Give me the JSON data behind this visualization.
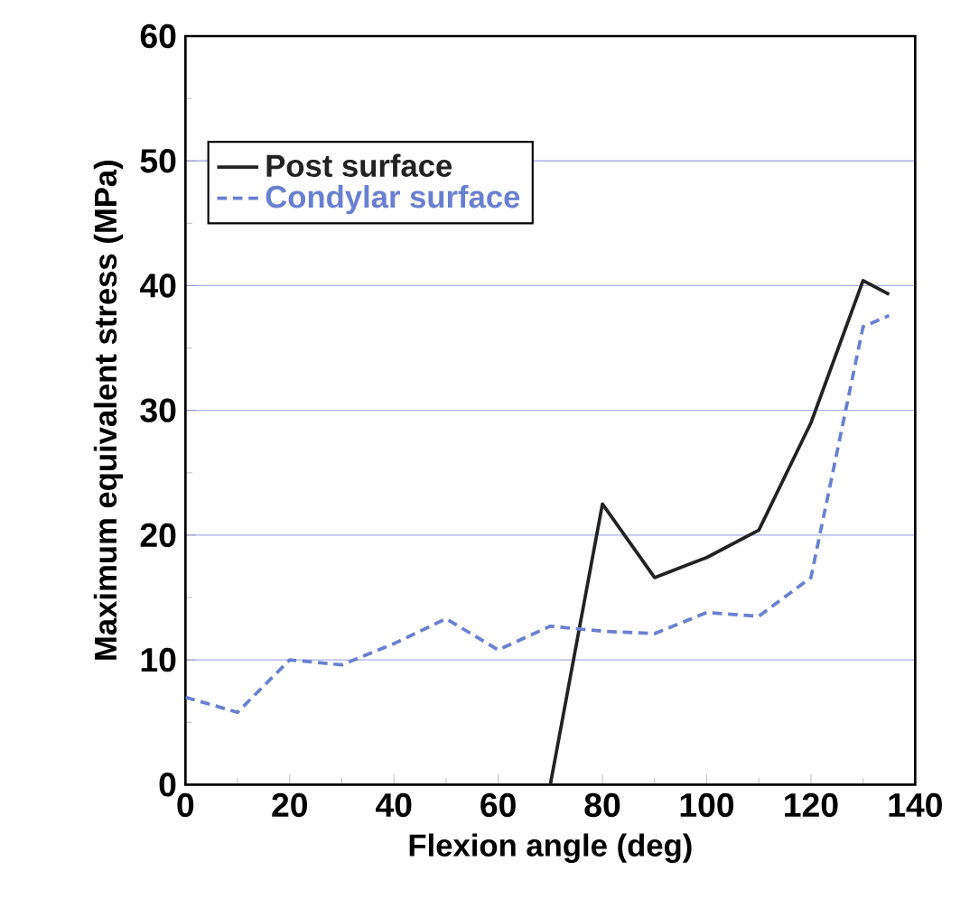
{
  "chart_data": {
    "type": "line",
    "xlabel": "Flexion angle (deg)",
    "ylabel": "Maximum equivalent stress (MPa)",
    "xlim": [
      0,
      140
    ],
    "xticks": [
      0,
      20,
      40,
      60,
      80,
      100,
      120,
      140
    ],
    "ylim": [
      0,
      60
    ],
    "yticks": [
      0,
      10,
      20,
      30,
      40,
      50,
      60
    ],
    "grid": "y",
    "legend": "top left",
    "series": [
      {
        "name": "Post surface",
        "color": "#222222",
        "line_style": "solid",
        "x": [
          70,
          80,
          90,
          100,
          110,
          120,
          130,
          135
        ],
        "values": [
          0,
          22.5,
          16.6,
          18.2,
          20.4,
          29.0,
          40.4,
          39.3
        ]
      },
      {
        "name": "Condylar surface",
        "color": "#6a7fcf",
        "line_style": "dashed",
        "x": [
          0,
          10,
          20,
          30,
          40,
          50,
          60,
          70,
          80,
          90,
          100,
          110,
          120,
          130,
          135
        ],
        "values": [
          7.0,
          5.8,
          10.0,
          9.6,
          11.3,
          13.3,
          10.8,
          12.7,
          12.3,
          12.1,
          13.8,
          13.5,
          16.6,
          36.7,
          37.6
        ]
      }
    ]
  }
}
